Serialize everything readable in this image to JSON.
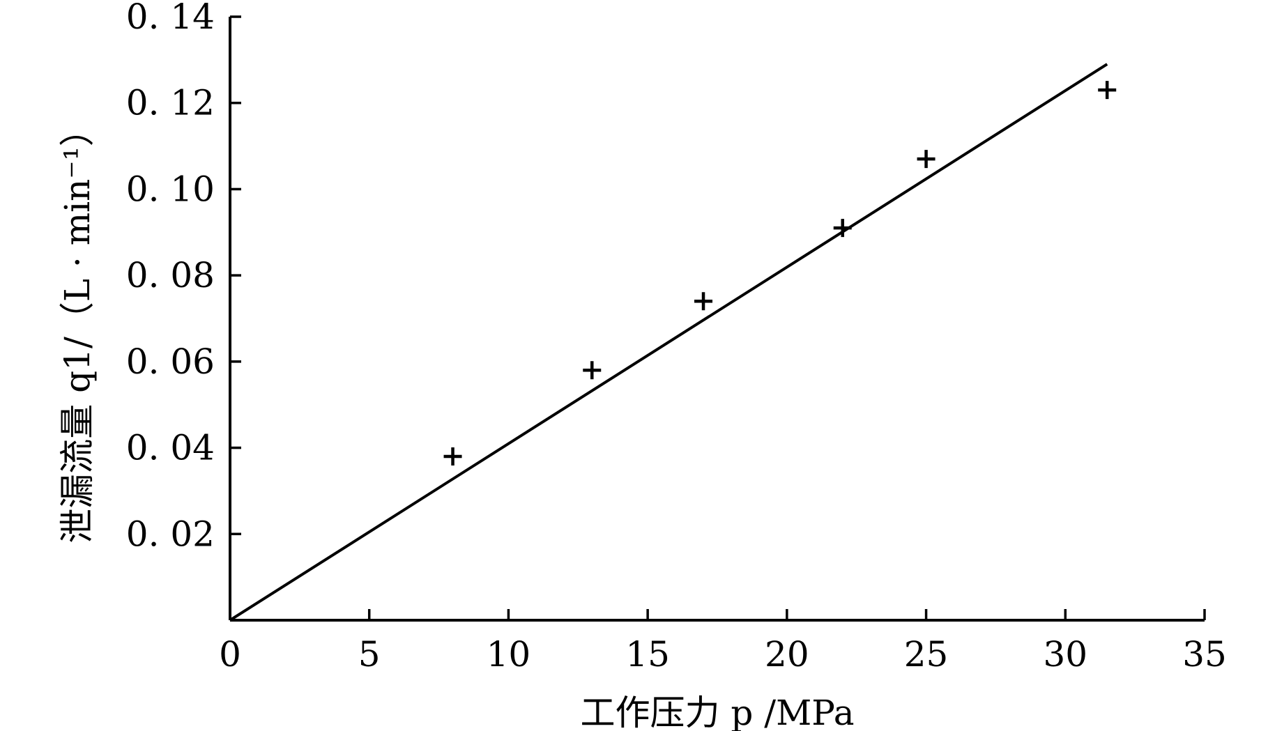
{
  "chart_data": {
    "type": "scatter",
    "xlabel": "工作压力 p /MPa",
    "ylabel": "泄漏流量 q1/（L · min⁻¹）",
    "xlim": [
      0,
      35
    ],
    "ylim": [
      0,
      0.14
    ],
    "x_ticks": [
      0,
      5,
      10,
      15,
      20,
      25,
      30,
      35
    ],
    "x_tick_labels": [
      "0",
      "5",
      "10",
      "15",
      "20",
      "25",
      "30",
      "35"
    ],
    "y_ticks": [
      0.02,
      0.04,
      0.06,
      0.08,
      0.1,
      0.12,
      0.14
    ],
    "y_tick_labels": [
      "0. 02",
      "0. 04",
      "0. 06",
      "0. 08",
      "0. 10",
      "0. 12",
      "0. 14"
    ],
    "grid": false,
    "marker": "+",
    "series": [
      {
        "x": [
          8,
          13,
          17,
          22,
          25,
          31.5
        ],
        "y": [
          0.038,
          0.058,
          0.074,
          0.091,
          0.107,
          0.123
        ]
      },
      {
        "style": "line",
        "x": [
          0,
          31.5
        ],
        "y": [
          0,
          0.129
        ]
      }
    ]
  }
}
